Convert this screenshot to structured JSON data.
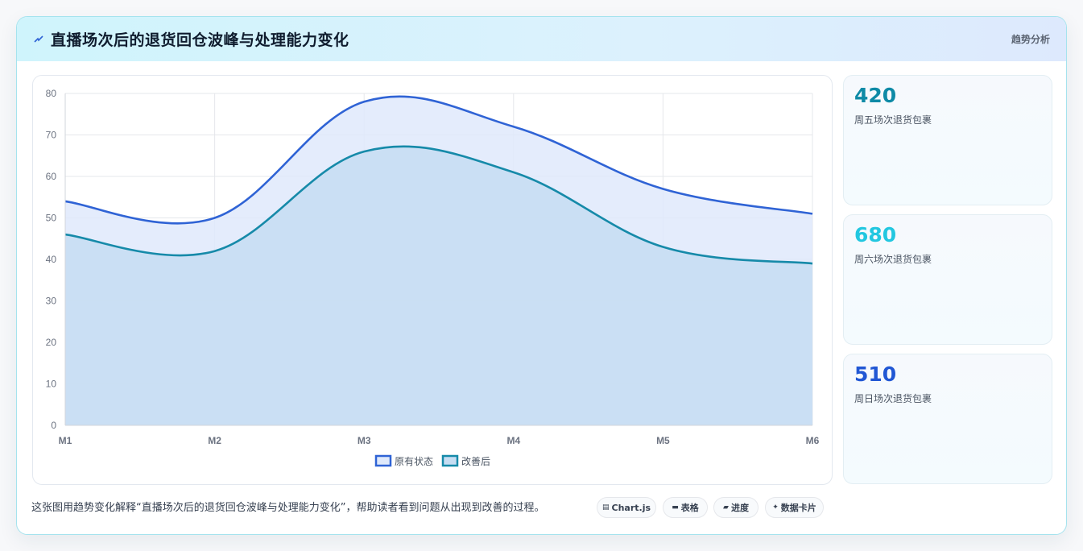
{
  "header": {
    "title": "直播场次后的退货回仓波峰与处理能力变化",
    "right_label": "趋势分析",
    "icon": "lightning-icon"
  },
  "chart_data": {
    "type": "area",
    "categories": [
      "M1",
      "M2",
      "M3",
      "M4",
      "M5",
      "M6"
    ],
    "series": [
      {
        "name": "原有状态",
        "values": [
          54,
          50,
          78,
          72,
          57,
          51
        ],
        "color": "#2f63d5",
        "fill": "#dfe9fb"
      },
      {
        "name": "改善后",
        "values": [
          46,
          42,
          66,
          61,
          43,
          39
        ],
        "color": "#168aa9",
        "fill": "#c6ddf2"
      }
    ],
    "ylim": [
      0,
      80
    ],
    "yticks": [
      0,
      10,
      20,
      30,
      40,
      50,
      60,
      70,
      80
    ],
    "grid": true,
    "legend": "bottom"
  },
  "stats": [
    {
      "value": "420",
      "label": "周五场次退货包裹",
      "color": "#0e8aa6"
    },
    {
      "value": "680",
      "label": "周六场次退货包裹",
      "color": "#22c7e0"
    },
    {
      "value": "510",
      "label": "周日场次退货包裹",
      "color": "#2157d4"
    }
  ],
  "footer": {
    "text": "这张图用趋势变化解释“直播场次后的退货回仓波峰与处理能力变化”，帮助读者看到问题从出现到改善的过程。",
    "chips": [
      {
        "icon": "chart-icon",
        "glyph": "▤",
        "label": "Chart.js"
      },
      {
        "icon": "table-icon",
        "glyph": "▬",
        "label": "表格"
      },
      {
        "icon": "progress-icon",
        "glyph": "▰",
        "label": "进度"
      },
      {
        "icon": "sparkle-icon",
        "glyph": "✦",
        "label": "数据卡片"
      }
    ]
  }
}
